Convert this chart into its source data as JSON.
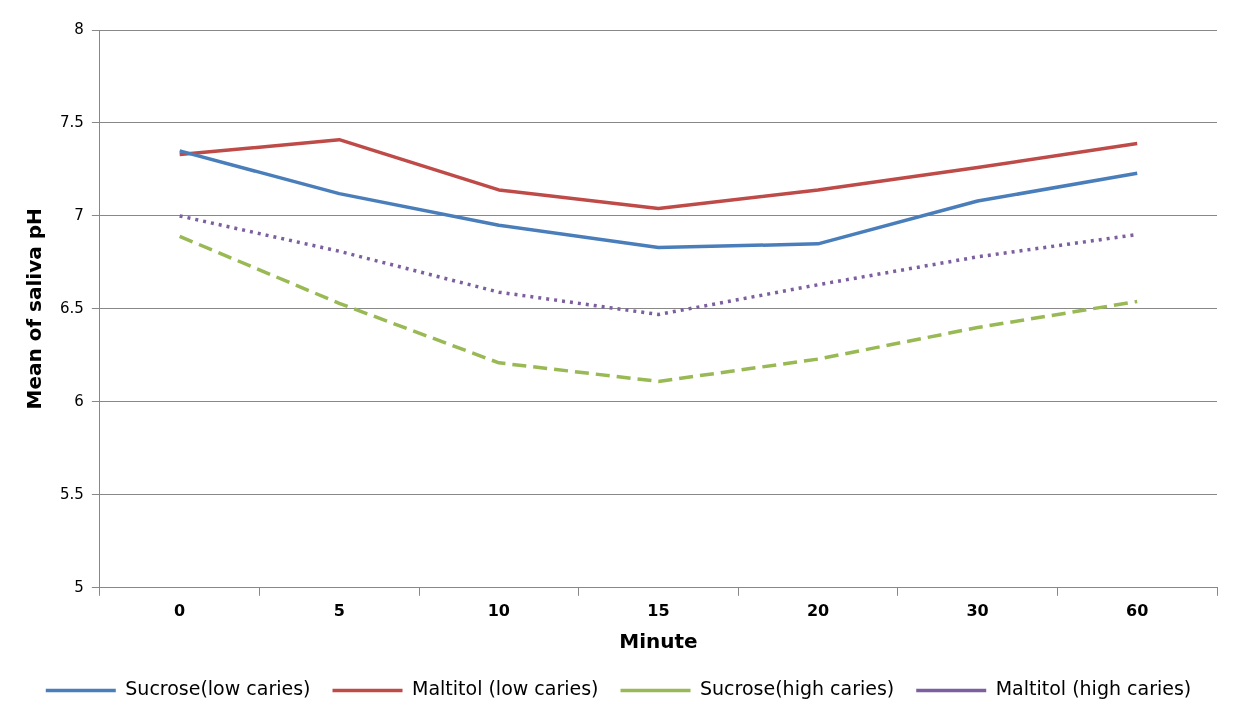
{
  "chart_data": {
    "type": "line",
    "xlabel": "Minute",
    "ylabel": "Mean of saliva pH",
    "categories": [
      "0",
      "5",
      "10",
      "15",
      "20",
      "30",
      "60"
    ],
    "ylim": [
      5,
      8
    ],
    "yticks": [
      5,
      5.5,
      6,
      6.5,
      7,
      7.5,
      8
    ],
    "grid": "y",
    "legend": "bottom",
    "marker": "none",
    "series": [
      {
        "name": "Sucrose(low caries)",
        "color": "#4a7ebb",
        "line_style": "solid",
        "values": [
          7.35,
          7.12,
          6.95,
          6.83,
          6.85,
          7.08,
          7.23
        ]
      },
      {
        "name": "Maltitol (low caries)",
        "color": "#be4b48",
        "line_style": "solid",
        "values": [
          7.33,
          7.41,
          7.14,
          7.04,
          7.14,
          7.26,
          7.39
        ]
      },
      {
        "name": "Sucrose(high caries)",
        "color": "#98b954",
        "line_style": "dashed",
        "values": [
          6.89,
          6.53,
          6.21,
          6.11,
          6.23,
          6.4,
          6.54
        ]
      },
      {
        "name": "Maltitol (high caries)",
        "color": "#7d5fa0",
        "line_style": "dotted",
        "values": [
          7.0,
          6.81,
          6.59,
          6.47,
          6.63,
          6.78,
          6.9
        ]
      }
    ]
  }
}
